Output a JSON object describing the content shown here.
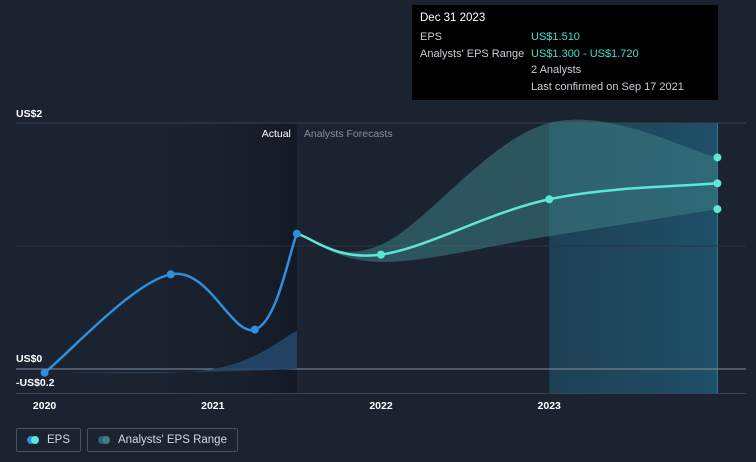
{
  "colors": {
    "background": "#1b2230",
    "actual_line": "#2f8fde",
    "forecast_line": "#5ee6d6",
    "range_fill": "#3d7f83",
    "highlight_text": "#3fe0d0"
  },
  "tooltip": {
    "title": "Dec 31 2023",
    "eps_label": "EPS",
    "eps_value": "US$1.510",
    "range_label": "Analysts' EPS Range",
    "range_value": "US$1.300 - US$1.720",
    "analysts": "2 Analysts",
    "confirmed": "Last confirmed on Sep 17 2021"
  },
  "legend": {
    "eps": "EPS",
    "range": "Analysts' EPS Range"
  },
  "chart_data": {
    "type": "line",
    "y_ticks": [
      {
        "value": 2,
        "label": "US$2"
      },
      {
        "value": 0,
        "label": "US$0"
      },
      {
        "value": -0.2,
        "label": "-US$0.2"
      }
    ],
    "ylim": [
      -0.2,
      2.0
    ],
    "x_ticks": [
      {
        "value": 2020.0,
        "label": "2020"
      },
      {
        "value": 2021.0,
        "label": "2021"
      },
      {
        "value": 2022.0,
        "label": "2022"
      },
      {
        "value": 2023.0,
        "label": "2023"
      }
    ],
    "xlim": [
      2019.83,
      2024.17
    ],
    "region_labels": {
      "actual": "Actual",
      "forecast": "Analysts Forecasts"
    },
    "actual_end": 2021.5,
    "eps_actual": {
      "name": "EPS",
      "points": [
        [
          2020.0,
          -0.03
        ],
        [
          2020.75,
          0.77
        ],
        [
          2021.25,
          0.32
        ],
        [
          2021.5,
          1.1
        ]
      ]
    },
    "eps_forecast": {
      "name": "EPS",
      "points": [
        [
          2021.5,
          1.1
        ],
        [
          2022.0,
          0.93
        ],
        [
          2023.0,
          1.38
        ],
        [
          2024.0,
          1.51
        ]
      ]
    },
    "range": {
      "name": "Analysts' EPS Range",
      "x": [
        2021.5,
        2022.0,
        2023.0,
        2024.0
      ],
      "low": [
        1.1,
        0.87,
        1.08,
        1.3
      ],
      "high": [
        1.1,
        1.01,
        2.0,
        1.72
      ]
    },
    "range_markers": [
      [
        2024.0,
        1.72
      ],
      [
        2024.0,
        1.3
      ]
    ],
    "historic_range_band": {
      "x": [
        2020.0,
        2021.0,
        2021.5
      ],
      "low": [
        -0.03,
        -0.02,
        0.0
      ],
      "high": [
        -0.03,
        0.0,
        0.31
      ]
    },
    "highlight_period": [
      2023.0,
      2024.0
    ]
  }
}
